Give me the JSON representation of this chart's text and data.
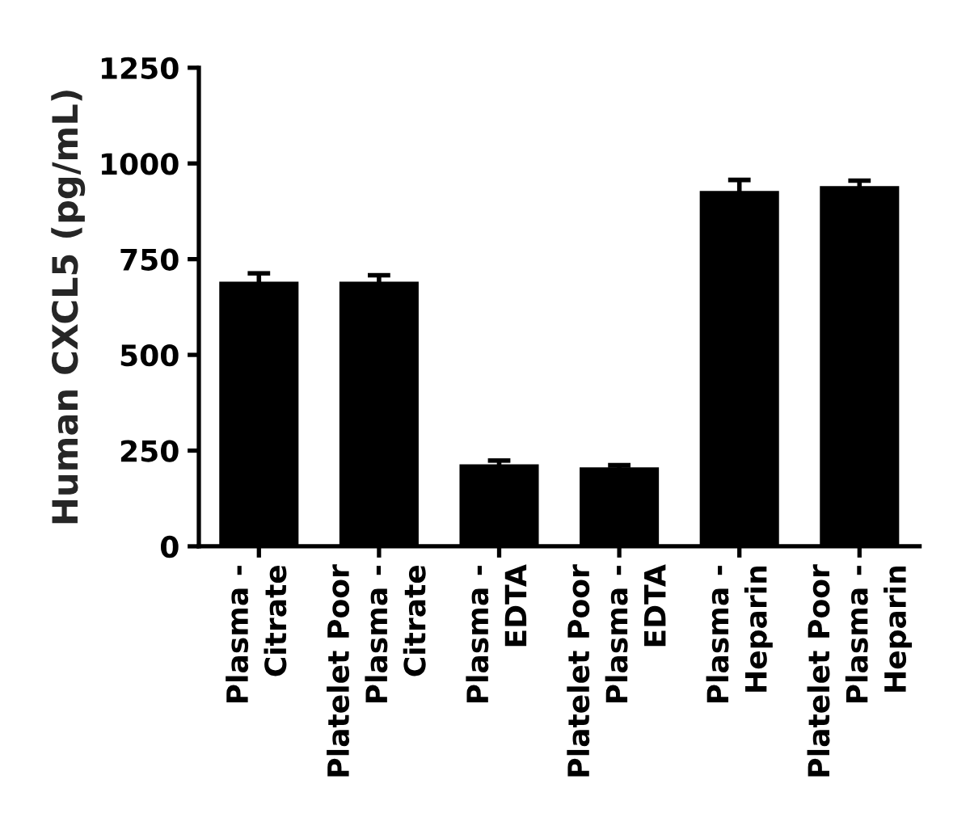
{
  "chart_data": {
    "type": "bar",
    "ylabel": "Human CXCL5 (pg/mL)",
    "categories": [
      "Plasma -\nCitrate",
      "Platelet Poor\nPlasma -\nCitrate",
      "Plasma -\nEDTA",
      "Platelet Poor\nPlasma -\nEDTA",
      "Plasma -\nHeparin",
      "Platelet Poor\nPlasma -\nHeparin"
    ],
    "values": [
      691,
      691,
      214,
      206,
      928,
      941
    ],
    "errors": [
      22,
      17,
      10,
      6,
      29,
      14
    ],
    "color": "#000000",
    "ylim": [
      0,
      1250
    ],
    "yticks": [
      0,
      250,
      500,
      750,
      1000,
      1250
    ]
  }
}
